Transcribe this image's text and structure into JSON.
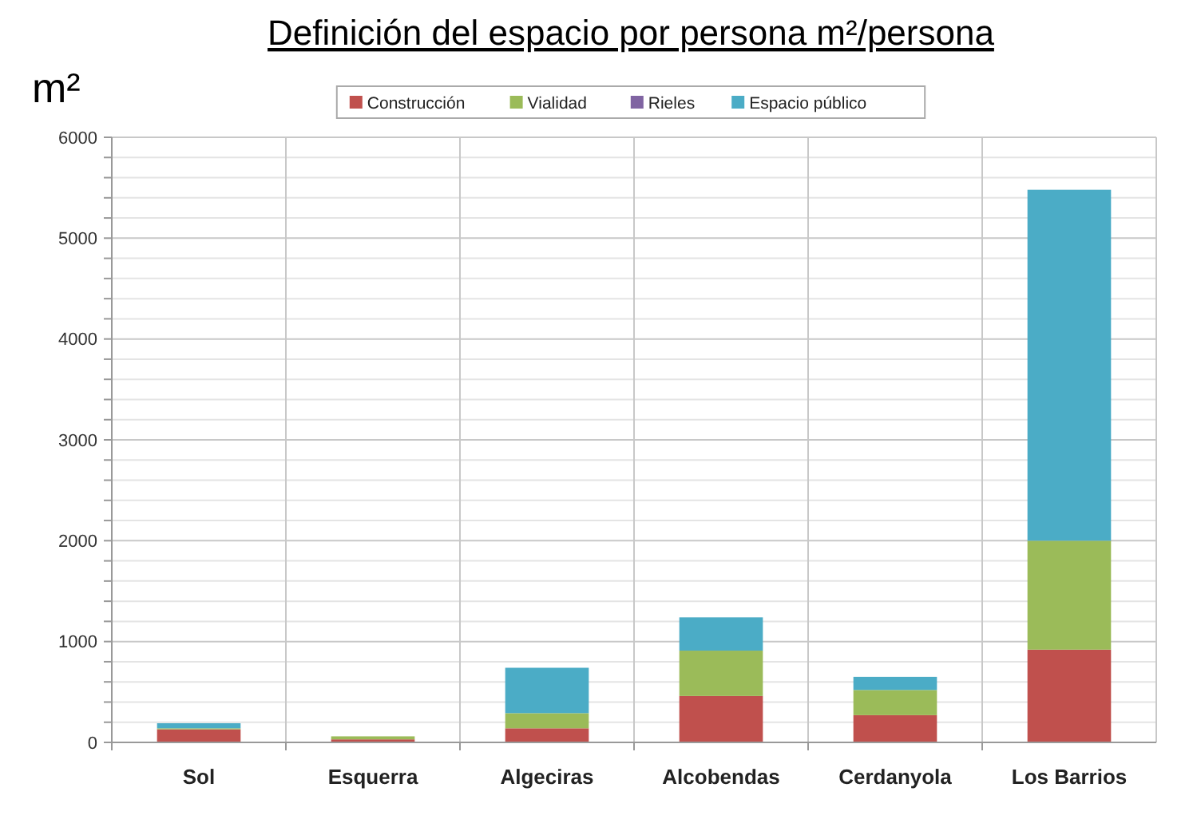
{
  "chart_data": {
    "type": "bar",
    "title": "Definición del espacio por persona m²/persona",
    "ylabel": "m²",
    "stacked": true,
    "categories": [
      "Sol",
      "Esquerra",
      "Algeciras",
      "Alcobendas",
      "Cerdanyola",
      "Los Barrios"
    ],
    "series": [
      {
        "name": "Construcción",
        "color": "#c0504d",
        "values": [
          130,
          30,
          140,
          460,
          270,
          920
        ]
      },
      {
        "name": "Vialidad",
        "color": "#9bbb59",
        "values": [
          10,
          30,
          150,
          450,
          250,
          1080
        ]
      },
      {
        "name": "Rieles",
        "color": "#8064a2",
        "values": [
          0,
          0,
          0,
          0,
          0,
          0
        ]
      },
      {
        "name": "Espacio público",
        "color": "#4bacc6",
        "values": [
          50,
          0,
          450,
          330,
          130,
          3480
        ]
      }
    ],
    "ylim": [
      0,
      6000
    ],
    "yticks": [
      0,
      {
        "value": 200,
        "label": null
      },
      {
        "value": 400,
        "label": null
      },
      {
        "value": 600,
        "label": null
      },
      {
        "value": 800,
        "label": null
      },
      1000,
      {
        "value": 1200,
        "label": null
      },
      {
        "value": 1400,
        "label": null
      },
      {
        "value": 1600,
        "label": null
      },
      {
        "value": 1800,
        "label": null
      },
      2000,
      {
        "value": 2200,
        "label": null
      },
      {
        "value": 2400,
        "label": null
      },
      {
        "value": 2600,
        "label": null
      },
      {
        "value": 2800,
        "label": null
      },
      3000,
      {
        "value": 3200,
        "label": null
      },
      {
        "value": 3400,
        "label": null
      },
      {
        "value": 3600,
        "label": null
      },
      {
        "value": 3800,
        "label": null
      },
      4000,
      {
        "value": 4200,
        "label": null
      },
      {
        "value": 4400,
        "label": null
      },
      {
        "value": 4600,
        "label": null
      },
      {
        "value": 4800,
        "label": null
      },
      5000,
      {
        "value": 5200,
        "label": null
      },
      {
        "value": 5400,
        "label": null
      },
      {
        "value": 5600,
        "label": null
      },
      {
        "value": 5800,
        "label": null
      },
      6000
    ],
    "grid": true,
    "legend": "top"
  }
}
